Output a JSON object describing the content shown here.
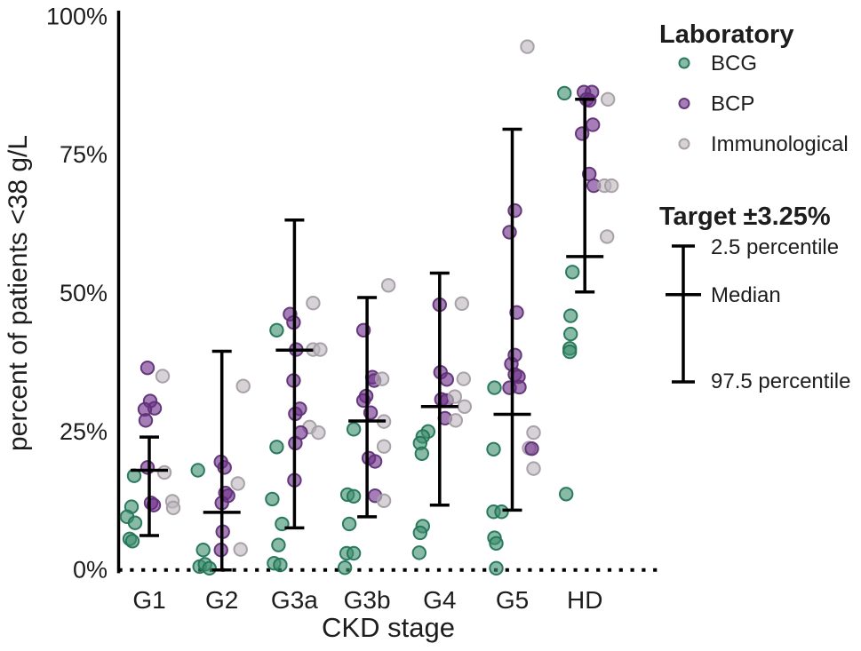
{
  "figure": {
    "background": "#ffffff",
    "text_color": "#1d1d1d",
    "axis_color": "#000000"
  },
  "chart_data": {
    "type": "scatter",
    "subtype": "jittered-dot-plot-with-percentile-bars",
    "title": "",
    "xlabel": "CKD stage",
    "ylabel": "percent of patients <38 g/L",
    "ylim": [
      0,
      100
    ],
    "grid": false,
    "yticks": [
      {
        "value": 0,
        "label": "0%"
      },
      {
        "value": 25,
        "label": "25%"
      },
      {
        "value": 50,
        "label": "50%"
      },
      {
        "value": 75,
        "label": "75%"
      },
      {
        "value": 100,
        "label": "100%"
      }
    ],
    "categories": [
      "G1",
      "G2",
      "G3a",
      "G3b",
      "G4",
      "G5",
      "HD"
    ],
    "baseline_dotted_at": 0,
    "legend": {
      "title": "Laboratory",
      "position": "right-top",
      "entries": [
        {
          "id": "BCG",
          "label": "BCG",
          "fill": "#3f8f6e",
          "stroke": "#23745a",
          "rendered_fill": "#88baa5"
        },
        {
          "id": "BCP",
          "label": "BCP",
          "fill": "#6f2f8a",
          "stroke": "#5e3175",
          "rendered_fill": "#a67eb6"
        },
        {
          "id": "IMM",
          "label": "Immunological",
          "fill": "#bdb6bd",
          "stroke": "#a49da4",
          "rendered_fill": "#d6d2d6"
        }
      ]
    },
    "target_legend": {
      "title": "Target ±3.25%",
      "upper_label": "2.5 percentile",
      "median_label": "Median",
      "lower_label": "97.5 percentile"
    },
    "stages": [
      {
        "category": "G1",
        "summary": {
          "upper": 24.0,
          "median": 18.0,
          "lower": 6.2
        },
        "points": [
          [
            "BCP",
            36.5,
            -2
          ],
          [
            "IMM",
            35,
            15
          ],
          [
            "BCP",
            30.5,
            1
          ],
          [
            "BCP",
            29.2,
            6
          ],
          [
            "BCP",
            29,
            -5
          ],
          [
            "BCP",
            27,
            -4
          ],
          [
            "BCP",
            18.5,
            -2
          ],
          [
            "IMM",
            17.6,
            17
          ],
          [
            "BCG",
            17,
            -17
          ],
          [
            "IMM",
            12.4,
            26
          ],
          [
            "BCP",
            12.1,
            2
          ],
          [
            "BCP",
            11.7,
            5
          ],
          [
            "IMM",
            11.2,
            27
          ],
          [
            "BCG",
            11.4,
            -20
          ],
          [
            "BCG",
            9.6,
            -25
          ],
          [
            "BCG",
            8.5,
            -16
          ],
          [
            "BCG",
            5.6,
            -22
          ],
          [
            "BCG",
            5.2,
            -19
          ]
        ]
      },
      {
        "category": "G2",
        "summary": {
          "upper": 39.5,
          "median": 10.4,
          "lower": 0
        },
        "points": [
          [
            "IMM",
            33.2,
            24
          ],
          [
            "BCP",
            19.5,
            -1
          ],
          [
            "BCP",
            18.5,
            3
          ],
          [
            "BCG",
            18,
            -27
          ],
          [
            "IMM",
            15.6,
            18
          ],
          [
            "BCP",
            13.9,
            4
          ],
          [
            "BCP",
            13.4,
            7
          ],
          [
            "BCP",
            12.1,
            0
          ],
          [
            "BCP",
            6.9,
            1
          ],
          [
            "BCG",
            3.6,
            -21
          ],
          [
            "BCP",
            3.6,
            -1
          ],
          [
            "IMM",
            3.7,
            21
          ],
          [
            "BCG",
            0.6,
            -25
          ],
          [
            "BCG",
            1,
            -19
          ],
          [
            "BCG",
            0.3,
            -14
          ]
        ]
      },
      {
        "category": "G3a",
        "summary": {
          "upper": 63.2,
          "median": 39.7,
          "lower": 7.6
        },
        "points": [
          [
            "IMM",
            48.2,
            21
          ],
          [
            "BCP",
            46.2,
            -5
          ],
          [
            "BCP",
            44.7,
            -1
          ],
          [
            "BCG",
            43.3,
            -20
          ],
          [
            "BCP",
            39.8,
            2
          ],
          [
            "IMM",
            39.8,
            21
          ],
          [
            "IMM",
            39.8,
            29
          ],
          [
            "BCP",
            34.2,
            -1
          ],
          [
            "BCP",
            29.1,
            6
          ],
          [
            "BCP",
            28.2,
            1
          ],
          [
            "IMM",
            25.8,
            17
          ],
          [
            "BCP",
            24.8,
            7
          ],
          [
            "IMM",
            24.8,
            27
          ],
          [
            "BCP",
            22.9,
            1
          ],
          [
            "BCG",
            22.2,
            -20
          ],
          [
            "BCP",
            16.2,
            0
          ],
          [
            "BCG",
            12.8,
            -25
          ],
          [
            "BCG",
            8.3,
            -14
          ],
          [
            "BCG",
            4.5,
            -18
          ],
          [
            "BCG",
            1.2,
            -23
          ],
          [
            "BCG",
            0.9,
            -16
          ]
        ]
      },
      {
        "category": "G3b",
        "summary": {
          "upper": 49.2,
          "median": 26.9,
          "lower": 9.6
        },
        "points": [
          [
            "IMM",
            51.4,
            24
          ],
          [
            "BCP",
            43.3,
            -4
          ],
          [
            "BCP",
            34.8,
            6
          ],
          [
            "BCP",
            34.2,
            8
          ],
          [
            "IMM",
            34.5,
            17
          ],
          [
            "BCP",
            31.4,
            -1
          ],
          [
            "BCP",
            30.6,
            -4
          ],
          [
            "BCP",
            28.4,
            4
          ],
          [
            "IMM",
            26.8,
            19
          ],
          [
            "BCG",
            25.4,
            -15
          ],
          [
            "IMM",
            22.3,
            19
          ],
          [
            "BCP",
            20.2,
            2
          ],
          [
            "BCP",
            19.6,
            9
          ],
          [
            "BCG",
            13.6,
            -22
          ],
          [
            "BCG",
            13.3,
            -15
          ],
          [
            "BCP",
            13.4,
            9
          ],
          [
            "IMM",
            12.5,
            19
          ],
          [
            "BCG",
            8.3,
            -20
          ],
          [
            "BCG",
            3,
            -23
          ],
          [
            "BCG",
            3,
            -15
          ],
          [
            "BCG",
            0.4,
            -25
          ]
        ]
      },
      {
        "category": "G4",
        "summary": {
          "upper": 53.6,
          "median": 29.5,
          "lower": 11.7
        },
        "points": [
          [
            "BCP",
            47.9,
            0
          ],
          [
            "IMM",
            48.1,
            25
          ],
          [
            "BCP",
            35.7,
            1
          ],
          [
            "BCP",
            34.4,
            8
          ],
          [
            "IMM",
            34.5,
            27
          ],
          [
            "BCP",
            30.8,
            2
          ],
          [
            "BCP",
            30.6,
            8
          ],
          [
            "IMM",
            31.3,
            17
          ],
          [
            "IMM",
            29.5,
            28
          ],
          [
            "BCP",
            27.4,
            6
          ],
          [
            "IMM",
            27,
            18
          ],
          [
            "BCG",
            25,
            -13
          ],
          [
            "BCG",
            24.1,
            -19
          ],
          [
            "BCG",
            22.9,
            -22
          ],
          [
            "BCG",
            21,
            -20
          ],
          [
            "BCG",
            7.9,
            -19
          ],
          [
            "BCG",
            6.7,
            -22
          ],
          [
            "BCG",
            3.1,
            -23
          ]
        ]
      },
      {
        "category": "G5",
        "summary": {
          "upper": 79.6,
          "median": 28.1,
          "lower": 10.8
        },
        "points": [
          [
            "IMM",
            94.5,
            17
          ],
          [
            "BCP",
            64.9,
            3
          ],
          [
            "BCP",
            61,
            -3
          ],
          [
            "BCP",
            46.5,
            5
          ],
          [
            "BCP",
            38.8,
            3
          ],
          [
            "BCP",
            37.2,
            -1
          ],
          [
            "BCP",
            35.3,
            3
          ],
          [
            "BCP",
            34.9,
            7
          ],
          [
            "BCG",
            32.9,
            -20
          ],
          [
            "BCP",
            32.9,
            -3
          ],
          [
            "BCP",
            33,
            8
          ],
          [
            "IMM",
            24.8,
            24
          ],
          [
            "BCG",
            21.8,
            -21
          ],
          [
            "IMM",
            22,
            19
          ],
          [
            "BCP",
            21.9,
            22
          ],
          [
            "IMM",
            18.3,
            24
          ],
          [
            "BCG",
            10.5,
            -21
          ],
          [
            "BCG",
            10.5,
            -12
          ],
          [
            "BCG",
            5.8,
            -20
          ],
          [
            "BCG",
            4.8,
            -18
          ],
          [
            "BCG",
            0.3,
            -18
          ]
        ]
      },
      {
        "category": "HD",
        "summary": {
          "upper": 85.0,
          "median": 56.6,
          "lower": 50.2
        },
        "points": [
          [
            "BCG",
            86.1,
            -23
          ],
          [
            "BCP",
            86.3,
            -1
          ],
          [
            "BCP",
            86.3,
            8
          ],
          [
            "BCP",
            85,
            2
          ],
          [
            "BCP",
            84.8,
            5
          ],
          [
            "IMM",
            85,
            26
          ],
          [
            "BCP",
            80.4,
            9
          ],
          [
            "BCP",
            78.8,
            -3
          ],
          [
            "BCP",
            71.5,
            5
          ],
          [
            "BCP",
            69.4,
            10
          ],
          [
            "IMM",
            69.4,
            22
          ],
          [
            "IMM",
            69.4,
            30
          ],
          [
            "IMM",
            60.2,
            25
          ],
          [
            "BCG",
            53.8,
            -14
          ],
          [
            "BCG",
            45.9,
            -16
          ],
          [
            "BCG",
            42.6,
            -16
          ],
          [
            "BCG",
            40,
            -17
          ],
          [
            "BCG",
            39.4,
            -17
          ],
          [
            "BCG",
            13.7,
            -21
          ]
        ]
      }
    ]
  }
}
